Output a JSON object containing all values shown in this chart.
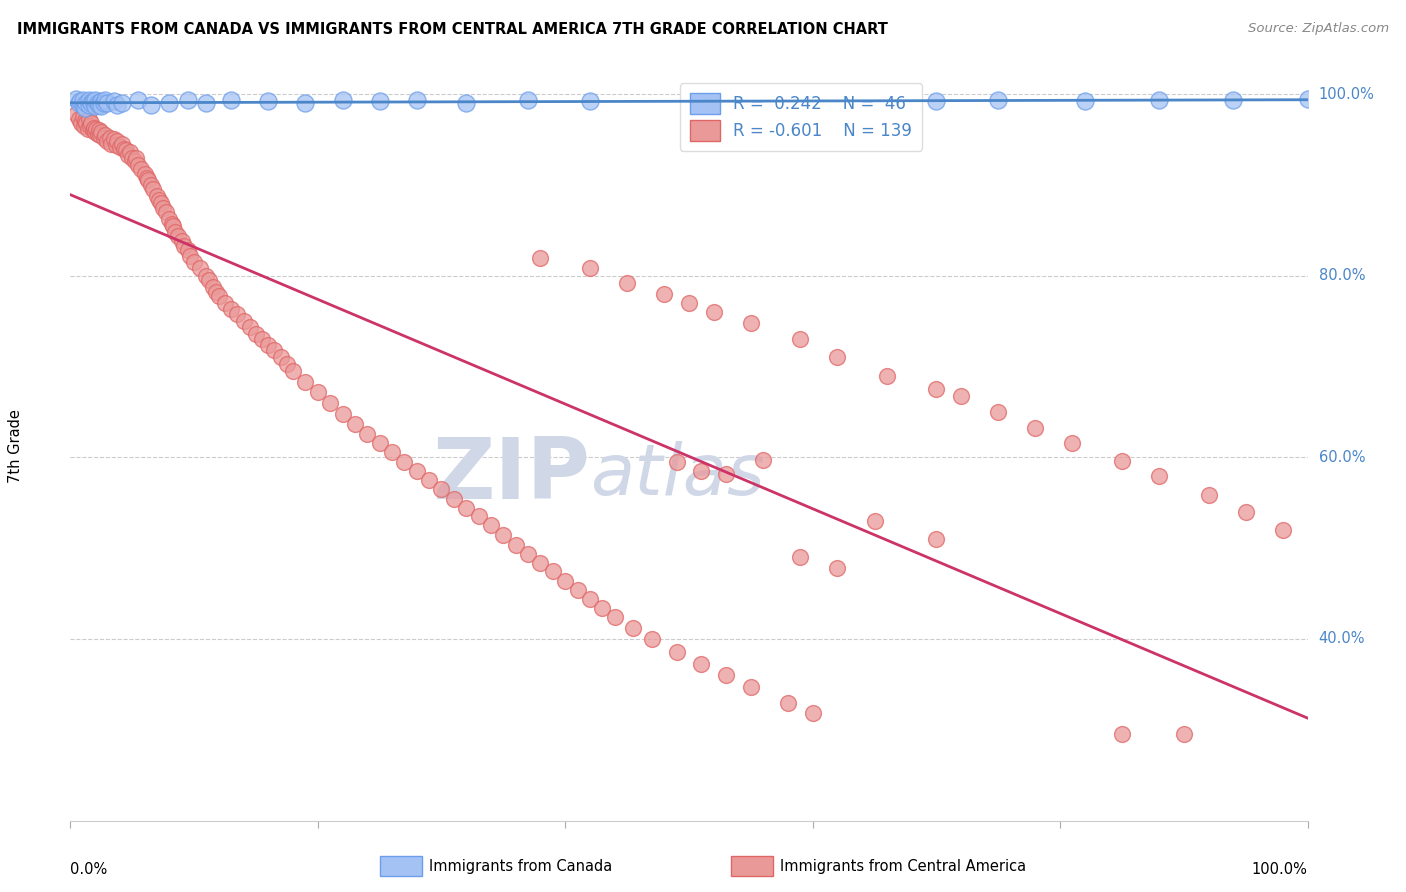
{
  "title": "IMMIGRANTS FROM CANADA VS IMMIGRANTS FROM CENTRAL AMERICA 7TH GRADE CORRELATION CHART",
  "source": "Source: ZipAtlas.com",
  "ylabel": "7th Grade",
  "y_tick_labels": [
    "100.0%",
    "80.0%",
    "60.0%",
    "40.0%"
  ],
  "y_tick_positions": [
    1.0,
    0.8,
    0.6,
    0.4
  ],
  "legend_label_canada": "Immigrants from Canada",
  "legend_label_central": "Immigrants from Central America",
  "R_canada": 0.242,
  "N_canada": 46,
  "R_central": -0.601,
  "N_central": 139,
  "blue_color": "#a4c2f4",
  "pink_color": "#ea9999",
  "blue_line_color": "#4a86c8",
  "pink_line_color": "#cc3366",
  "blue_edge_color": "#6d9eeb",
  "pink_edge_color": "#e06666",
  "legend_text_color": "#4a86c8",
  "background_color": "#ffffff",
  "watermark_color": "#d0d8e8",
  "canada_x": [
    0.005,
    0.007,
    0.008,
    0.01,
    0.01,
    0.012,
    0.013,
    0.015,
    0.015,
    0.017,
    0.018,
    0.02,
    0.02,
    0.022,
    0.023,
    0.025,
    0.025,
    0.027,
    0.028,
    0.03,
    0.035,
    0.038,
    0.042,
    0.055,
    0.065,
    0.08,
    0.095,
    0.11,
    0.13,
    0.16,
    0.19,
    0.22,
    0.25,
    0.28,
    0.32,
    0.37,
    0.42,
    0.5,
    0.56,
    0.62,
    0.7,
    0.75,
    0.82,
    0.88,
    0.94,
    1.0
  ],
  "canada_y": [
    0.995,
    0.99,
    0.992,
    0.988,
    0.993,
    0.985,
    0.99,
    0.988,
    0.993,
    0.99,
    0.992,
    0.987,
    0.993,
    0.99,
    0.988,
    0.992,
    0.987,
    0.99,
    0.993,
    0.99,
    0.992,
    0.988,
    0.99,
    0.993,
    0.988,
    0.99,
    0.993,
    0.99,
    0.993,
    0.992,
    0.99,
    0.993,
    0.992,
    0.993,
    0.99,
    0.993,
    0.992,
    0.99,
    0.993,
    0.993,
    0.992,
    0.993,
    0.992,
    0.993,
    0.993,
    0.995
  ],
  "central_x": [
    0.005,
    0.007,
    0.009,
    0.01,
    0.011,
    0.012,
    0.013,
    0.014,
    0.015,
    0.016,
    0.017,
    0.018,
    0.019,
    0.02,
    0.021,
    0.022,
    0.023,
    0.024,
    0.025,
    0.027,
    0.028,
    0.03,
    0.032,
    0.033,
    0.035,
    0.037,
    0.038,
    0.04,
    0.042,
    0.043,
    0.045,
    0.047,
    0.048,
    0.05,
    0.052,
    0.053,
    0.055,
    0.057,
    0.06,
    0.062,
    0.063,
    0.065,
    0.067,
    0.07,
    0.072,
    0.073,
    0.075,
    0.077,
    0.08,
    0.082,
    0.083,
    0.085,
    0.087,
    0.09,
    0.092,
    0.095,
    0.097,
    0.1,
    0.105,
    0.11,
    0.112,
    0.115,
    0.118,
    0.12,
    0.125,
    0.13,
    0.135,
    0.14,
    0.145,
    0.15,
    0.155,
    0.16,
    0.165,
    0.17,
    0.175,
    0.18,
    0.19,
    0.2,
    0.21,
    0.22,
    0.23,
    0.24,
    0.25,
    0.26,
    0.27,
    0.28,
    0.29,
    0.3,
    0.31,
    0.32,
    0.33,
    0.34,
    0.35,
    0.36,
    0.37,
    0.38,
    0.39,
    0.4,
    0.41,
    0.42,
    0.43,
    0.44,
    0.455,
    0.47,
    0.49,
    0.51,
    0.53,
    0.55,
    0.58,
    0.6,
    0.38,
    0.42,
    0.45,
    0.48,
    0.5,
    0.52,
    0.55,
    0.59,
    0.62,
    0.66,
    0.7,
    0.72,
    0.75,
    0.78,
    0.81,
    0.85,
    0.88,
    0.92,
    0.95,
    0.98,
    0.49,
    0.51,
    0.53,
    0.56,
    0.59,
    0.62,
    0.65,
    0.7,
    0.85,
    0.9
  ],
  "central_y": [
    0.978,
    0.972,
    0.968,
    0.975,
    0.965,
    0.97,
    0.968,
    0.962,
    0.972,
    0.965,
    0.968,
    0.96,
    0.963,
    0.958,
    0.962,
    0.956,
    0.96,
    0.955,
    0.958,
    0.952,
    0.955,
    0.948,
    0.952,
    0.945,
    0.95,
    0.944,
    0.948,
    0.942,
    0.945,
    0.94,
    0.938,
    0.933,
    0.936,
    0.93,
    0.926,
    0.93,
    0.922,
    0.918,
    0.912,
    0.908,
    0.905,
    0.9,
    0.895,
    0.888,
    0.883,
    0.88,
    0.875,
    0.87,
    0.862,
    0.857,
    0.855,
    0.848,
    0.844,
    0.838,
    0.833,
    0.828,
    0.822,
    0.815,
    0.808,
    0.8,
    0.795,
    0.788,
    0.782,
    0.778,
    0.77,
    0.763,
    0.758,
    0.75,
    0.744,
    0.736,
    0.73,
    0.724,
    0.718,
    0.71,
    0.703,
    0.695,
    0.683,
    0.672,
    0.66,
    0.648,
    0.637,
    0.626,
    0.616,
    0.606,
    0.595,
    0.585,
    0.575,
    0.565,
    0.554,
    0.544,
    0.535,
    0.525,
    0.514,
    0.504,
    0.494,
    0.484,
    0.475,
    0.464,
    0.454,
    0.444,
    0.434,
    0.424,
    0.412,
    0.4,
    0.386,
    0.373,
    0.36,
    0.347,
    0.33,
    0.318,
    0.82,
    0.808,
    0.792,
    0.78,
    0.77,
    0.76,
    0.748,
    0.73,
    0.71,
    0.69,
    0.675,
    0.668,
    0.65,
    0.632,
    0.616,
    0.596,
    0.579,
    0.558,
    0.54,
    0.52,
    0.595,
    0.585,
    0.582,
    0.597,
    0.49,
    0.478,
    0.53,
    0.51,
    0.295,
    0.295
  ]
}
